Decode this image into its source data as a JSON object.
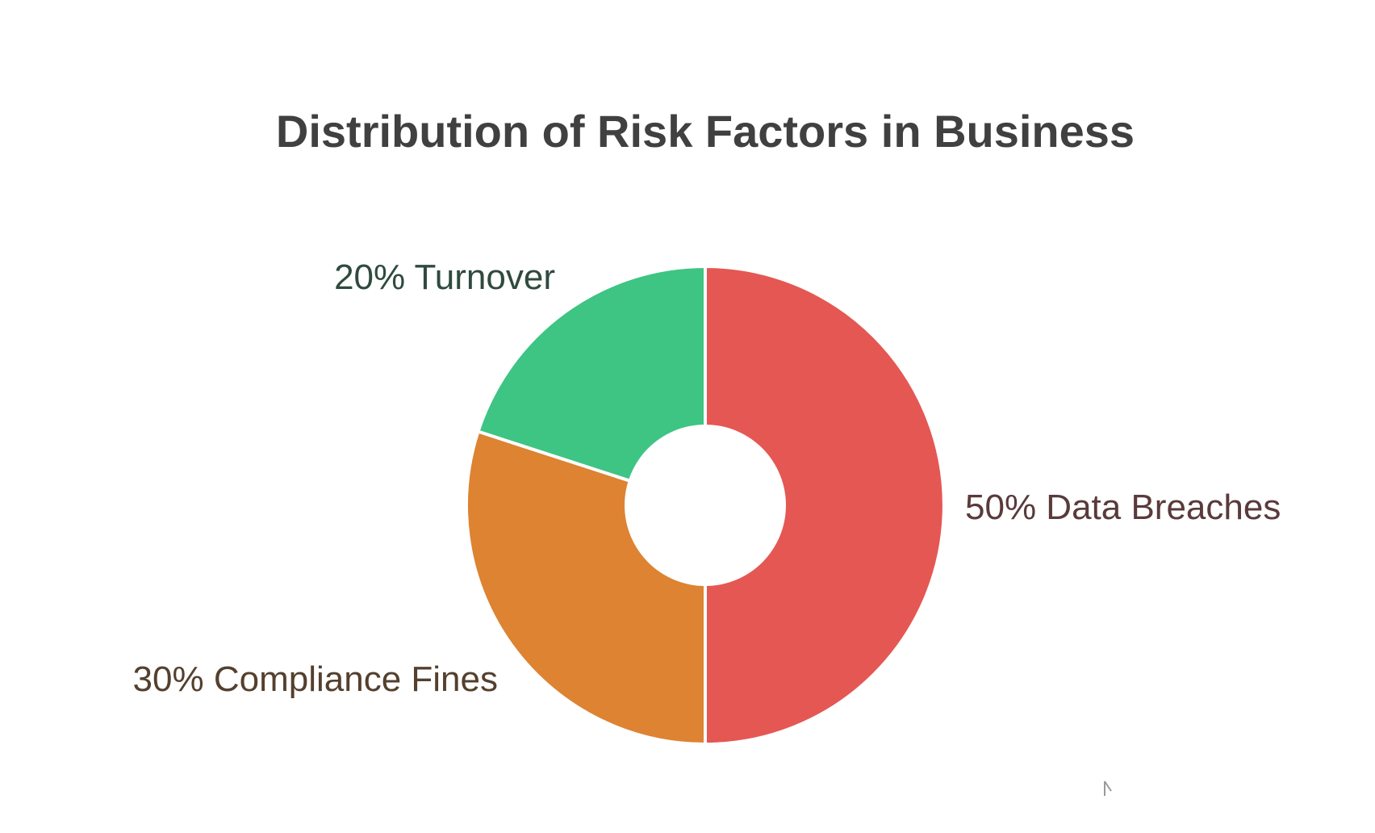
{
  "chart_data": {
    "type": "pie",
    "title": "Distribution of Risk Factors in Business",
    "donut": true,
    "slices": [
      {
        "label": "Data Breaches",
        "value": 50,
        "display": "50% Data Breaches",
        "color": "#E55753",
        "text_color": "#5A3A3A"
      },
      {
        "label": "Compliance Fines",
        "value": 30,
        "display": "30% Compliance Fines",
        "color": "#DD8332",
        "text_color": "#54402E"
      },
      {
        "label": "Turnover",
        "value": 20,
        "display": "20% Turnover",
        "color": "#3EC483",
        "text_color": "#2F4A3E"
      }
    ],
    "legend": "none"
  }
}
